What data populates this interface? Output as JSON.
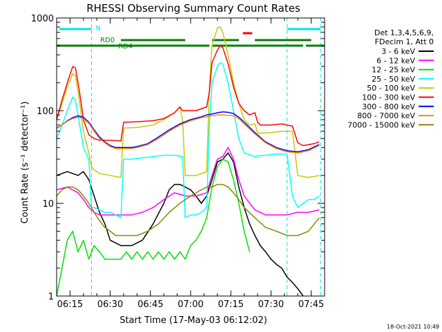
{
  "chart_data": {
    "type": "line",
    "title": "RHESSI Observing Summary Count Rates",
    "xlabel": "Start Time (17-May-03 06:12:02)",
    "ylabel": "Count Rate (s⁻¹ detector⁻¹)",
    "x_unit": "minutes after 06:00 UT",
    "xlim": [
      10,
      110
    ],
    "ylim": [
      1,
      1000
    ],
    "y_scale": "log",
    "grid": false,
    "x_tick_values": [
      15,
      30,
      45,
      60,
      75,
      90,
      105
    ],
    "x_ticks": [
      "06:15",
      "06:30",
      "06:45",
      "07:00",
      "07:15",
      "07:30",
      "07:45"
    ],
    "y_tick_values": [
      1,
      10,
      100,
      1000
    ],
    "y_ticks": [
      "1",
      "10",
      "100",
      "1000"
    ],
    "legend_position": "right",
    "legend_header": [
      "Det 1,3,4,5,6,9,",
      "FDecim 1, Att 0"
    ],
    "footer_timestamp": "18-Oct-2021 10:49",
    "colors": {
      "axes": "#000000",
      "eclipse": "#00e0e0",
      "rd": "#008000",
      "flare": "#ff0000"
    },
    "eclipse_label": "N",
    "eclipse_bars": [
      [
        11,
        23
      ],
      [
        96,
        108.5
      ]
    ],
    "eclipse_lines": [
      23,
      96,
      108.5
    ],
    "rd_labels": [
      "RD0",
      "RD4"
    ],
    "rd0_bars": [
      [
        34,
        58
      ],
      [
        68,
        78
      ],
      [
        84,
        105
      ]
    ],
    "rd4_bars": [
      [
        10,
        67
      ],
      [
        68,
        85
      ],
      [
        85,
        102
      ],
      [
        103,
        110
      ]
    ],
    "flare_marker": [
      79.5,
      83
    ],
    "series": [
      {
        "name": "3 - 6 keV",
        "color": "#000000",
        "x": [
          10,
          14,
          18,
          20,
          22,
          24,
          26,
          28,
          30,
          34,
          38,
          42,
          46,
          50,
          52,
          54,
          56,
          58,
          60,
          62,
          64,
          66,
          68,
          70,
          72,
          74,
          76,
          78,
          80,
          82,
          84,
          86,
          88,
          90,
          92,
          94,
          96,
          98,
          100,
          102
        ],
        "values": [
          20,
          22,
          20,
          22,
          18,
          12,
          8,
          6,
          4,
          3.5,
          3.5,
          4,
          6,
          10,
          14,
          16,
          16,
          15,
          14,
          12,
          10,
          12,
          18,
          28,
          30,
          35,
          28,
          15,
          9,
          6,
          4.5,
          3.5,
          3,
          2.5,
          2.2,
          2,
          1.6,
          1.4,
          1.2,
          1
        ]
      },
      {
        "name": "6 - 12 keV",
        "color": "#ff00ff",
        "x": [
          10,
          14,
          18,
          20,
          22,
          24,
          26,
          28,
          30,
          34,
          38,
          42,
          46,
          50,
          54,
          58,
          62,
          66,
          68,
          70,
          72,
          74,
          76,
          78,
          80,
          84,
          88,
          92,
          96,
          100,
          104,
          108
        ],
        "values": [
          14,
          15,
          13,
          11,
          9,
          8,
          7.5,
          7.5,
          7.5,
          7.5,
          7.5,
          8,
          9,
          11,
          13,
          12,
          12,
          13,
          20,
          30,
          32,
          40,
          30,
          18,
          12,
          8.5,
          7.5,
          7.5,
          7.5,
          8,
          8,
          8.5
        ]
      },
      {
        "name": "12 - 25 keV",
        "color": "#00e000",
        "x": [
          10,
          12,
          14,
          16,
          18,
          20,
          22,
          24,
          26,
          28,
          30,
          32,
          34,
          36,
          38,
          40,
          42,
          44,
          46,
          48,
          50,
          52,
          54,
          56,
          58,
          60,
          62,
          64,
          66,
          68,
          70,
          72,
          74,
          76,
          78,
          80,
          82
        ],
        "values": [
          1,
          2,
          4,
          5,
          3,
          4,
          2.5,
          3.5,
          3,
          2.5,
          2.5,
          2.5,
          2.5,
          3,
          2.5,
          3,
          2.5,
          3,
          2.5,
          3,
          2.5,
          3,
          2.5,
          3,
          2.5,
          3.5,
          4,
          5,
          7,
          15,
          25,
          30,
          28,
          18,
          10,
          5,
          3
        ]
      },
      {
        "name": "25 - 50 keV",
        "color": "#00ffff",
        "x": [
          10,
          12,
          14,
          16,
          17,
          18,
          19,
          20,
          22,
          23,
          24,
          26,
          28,
          30,
          32,
          34,
          35,
          38,
          42,
          46,
          50,
          54,
          57,
          58,
          60,
          62,
          64,
          66,
          67,
          68,
          70,
          71,
          72,
          74,
          76,
          78,
          80,
          84,
          88,
          92,
          96,
          98,
          100,
          102,
          104,
          106,
          108
        ],
        "values": [
          50,
          70,
          100,
          140,
          130,
          90,
          60,
          40,
          30,
          9,
          9,
          8.5,
          8,
          8,
          7.5,
          7,
          30,
          30,
          31,
          32,
          33,
          33,
          32,
          7,
          7.5,
          7.5,
          8,
          9,
          70,
          200,
          300,
          330,
          320,
          200,
          100,
          50,
          35,
          32,
          33,
          34,
          34,
          12,
          9,
          10,
          11,
          11,
          12
        ]
      },
      {
        "name": "50 - 100 keV",
        "color": "#c8c800",
        "x": [
          10,
          12,
          14,
          16,
          17,
          18,
          19,
          20,
          22,
          23,
          24,
          26,
          30,
          34,
          35,
          40,
          46,
          50,
          54,
          56,
          57,
          58,
          62,
          66,
          67,
          68,
          70,
          71,
          72,
          74,
          76,
          78,
          80,
          82,
          84,
          85,
          86,
          90,
          94,
          96,
          98,
          100,
          104,
          108
        ],
        "values": [
          80,
          120,
          180,
          250,
          240,
          160,
          100,
          60,
          35,
          25,
          23,
          21,
          20,
          19,
          65,
          66,
          70,
          80,
          95,
          110,
          80,
          20,
          20,
          22,
          180,
          500,
          780,
          800,
          700,
          400,
          200,
          120,
          80,
          70,
          72,
          58,
          57,
          58,
          60,
          60,
          60,
          20,
          19,
          20
        ]
      },
      {
        "name": "100 - 300 keV",
        "color": "#ff0000",
        "x": [
          10,
          12,
          14,
          16,
          17,
          18,
          19,
          20,
          22,
          24,
          26,
          30,
          34,
          35,
          40,
          46,
          50,
          54,
          56,
          57,
          58,
          62,
          66,
          67,
          68,
          70,
          71,
          72,
          74,
          76,
          78,
          80,
          82,
          84,
          85,
          86,
          90,
          94,
          96,
          98,
          100,
          102,
          104,
          106,
          108
        ],
        "values": [
          80,
          130,
          200,
          300,
          290,
          200,
          130,
          80,
          55,
          50,
          48,
          48,
          47,
          75,
          76,
          78,
          82,
          95,
          110,
          100,
          100,
          100,
          110,
          160,
          330,
          450,
          500,
          480,
          320,
          180,
          120,
          100,
          90,
          95,
          75,
          70,
          70,
          72,
          70,
          68,
          45,
          42,
          43,
          44,
          46
        ]
      },
      {
        "name": "300 - 800 keV",
        "color": "#0000ff",
        "x": [
          10,
          12,
          14,
          16,
          18,
          20,
          22,
          24,
          26,
          28,
          30,
          32,
          34,
          36,
          38,
          40,
          44,
          48,
          52,
          56,
          60,
          64,
          66,
          68,
          70,
          72,
          74,
          76,
          78,
          80,
          84,
          88,
          92,
          96,
          100,
          104,
          108
        ],
        "values": [
          65,
          70,
          78,
          84,
          88,
          85,
          75,
          62,
          52,
          46,
          42,
          40,
          40,
          40,
          40,
          41,
          44,
          52,
          62,
          72,
          80,
          86,
          90,
          92,
          95,
          97,
          96,
          93,
          85,
          75,
          58,
          46,
          40,
          37,
          36,
          38,
          43
        ]
      },
      {
        "name": "800 - 7000 keV",
        "color": "#ff8800",
        "x": [
          10,
          12,
          14,
          16,
          18,
          20,
          22,
          24,
          26,
          28,
          30,
          32,
          34,
          36,
          38,
          40,
          44,
          48,
          52,
          56,
          60,
          64,
          66,
          68,
          70,
          72,
          74,
          76,
          78,
          80,
          84,
          88,
          92,
          96,
          100,
          104,
          108
        ],
        "values": [
          64,
          70,
          77,
          82,
          85,
          82,
          73,
          60,
          50,
          45,
          41,
          39,
          39,
          39,
          39,
          40,
          43,
          50,
          60,
          70,
          78,
          84,
          86,
          88,
          90,
          90,
          89,
          88,
          82,
          72,
          56,
          45,
          39,
          36,
          35,
          37,
          42
        ]
      },
      {
        "name": "7000 - 15000 keV",
        "color": "#888800",
        "x": [
          10,
          12,
          14,
          16,
          18,
          20,
          22,
          24,
          26,
          28,
          30,
          32,
          34,
          36,
          38,
          40,
          44,
          48,
          52,
          56,
          60,
          64,
          66,
          68,
          70,
          72,
          74,
          76,
          78,
          80,
          84,
          88,
          92,
          96,
          100,
          104,
          108
        ],
        "values": [
          12,
          14,
          15,
          15,
          14,
          12,
          10,
          8,
          6.5,
          5.5,
          5,
          4.5,
          4.5,
          4.5,
          4.5,
          4.5,
          5,
          6,
          8,
          10,
          12,
          14,
          15,
          15,
          16,
          16,
          15,
          13,
          11,
          9,
          7,
          5.5,
          5,
          4.5,
          4.5,
          5,
          7
        ]
      }
    ]
  }
}
